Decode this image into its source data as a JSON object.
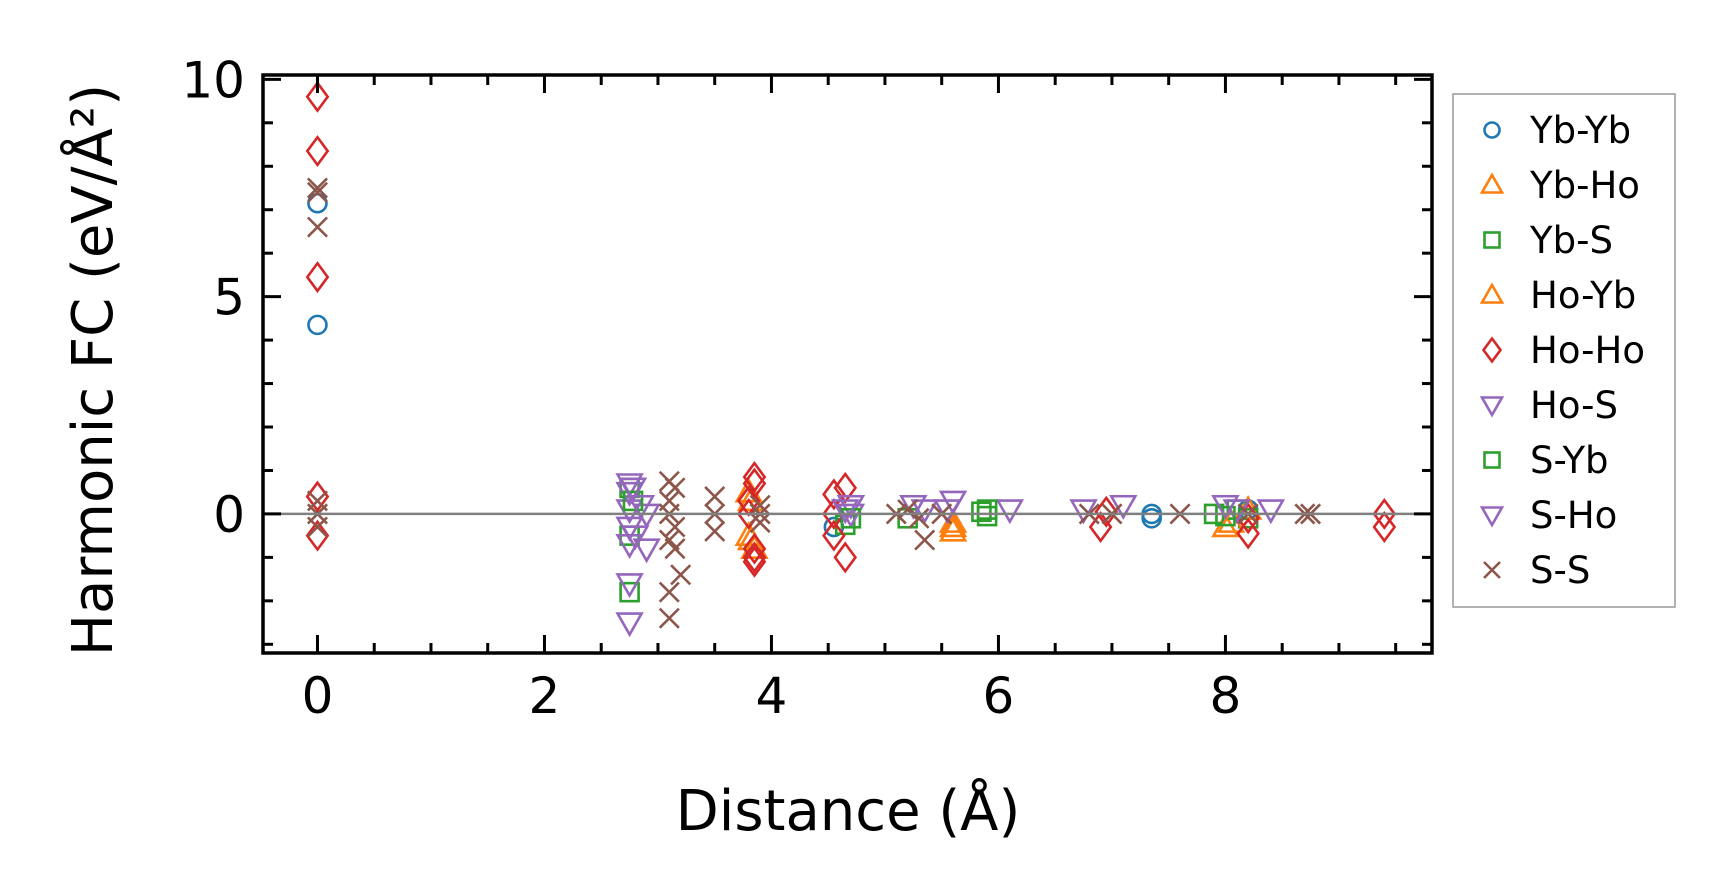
{
  "chart_data": {
    "type": "scatter",
    "title": "",
    "xlabel": "Distance (Å)",
    "ylabel": "Harmonic FC (eV/Å²)",
    "xlim": [
      -0.48,
      9.82
    ],
    "ylim": [
      -3.2,
      10.1
    ],
    "xticks": [
      "0",
      "2",
      "4",
      "6",
      "8"
    ],
    "xtick_values": [
      0,
      2,
      4,
      6,
      8
    ],
    "yticks": [
      "0",
      "5",
      "10"
    ],
    "ytick_values": [
      0,
      5,
      10
    ],
    "zero_line": true,
    "legend_position": "outside-right",
    "series": [
      {
        "name": "Yb-Yb",
        "marker": "circle",
        "color": "#1f77b4",
        "points": [
          [
            0,
            7.15
          ],
          [
            0,
            4.35
          ],
          [
            4.55,
            -0.3
          ],
          [
            7.35,
            0
          ],
          [
            7.35,
            -0.1
          ],
          [
            8.2,
            0.1
          ]
        ]
      },
      {
        "name": "Yb-Ho",
        "marker": "triangle-up",
        "color": "#ff7f0e",
        "points": [
          [
            3.8,
            0.5
          ],
          [
            3.8,
            -0.5
          ],
          [
            3.85,
            -0.8
          ],
          [
            5.6,
            -0.4
          ],
          [
            5.6,
            -0.2
          ],
          [
            8.0,
            -0.3
          ],
          [
            8.2,
            0.1
          ]
        ]
      },
      {
        "name": "Yb-S",
        "marker": "square",
        "color": "#2ca02c",
        "points": [
          [
            2.75,
            0.6
          ],
          [
            2.75,
            -0.5
          ],
          [
            2.75,
            -1.8
          ],
          [
            4.65,
            -0.25
          ],
          [
            5.2,
            -0.1
          ],
          [
            5.85,
            0.05
          ],
          [
            5.9,
            -0.05
          ],
          [
            7.9,
            0
          ],
          [
            8.1,
            0.1
          ],
          [
            8.2,
            -0.1
          ]
        ]
      },
      {
        "name": "Ho-Yb",
        "marker": "triangle-up",
        "color": "#ff7f0e",
        "points": [
          [
            3.82,
            0.3
          ],
          [
            3.82,
            -0.6
          ],
          [
            5.6,
            -0.3
          ],
          [
            8.05,
            -0.2
          ]
        ]
      },
      {
        "name": "Ho-Ho",
        "marker": "diamond",
        "color": "#d62728",
        "points": [
          [
            0,
            9.6
          ],
          [
            0,
            8.35
          ],
          [
            0,
            5.45
          ],
          [
            0,
            0.4
          ],
          [
            0,
            -0.5
          ],
          [
            3.85,
            0.85
          ],
          [
            3.85,
            0.7
          ],
          [
            3.85,
            -0.8
          ],
          [
            3.85,
            -1.0
          ],
          [
            3.85,
            -1.1
          ],
          [
            3.8,
            0.3
          ],
          [
            3.8,
            0
          ],
          [
            4.55,
            0.45
          ],
          [
            4.65,
            0.6
          ],
          [
            4.55,
            -0.5
          ],
          [
            4.65,
            -1.0
          ],
          [
            4.55,
            0
          ],
          [
            6.9,
            -0.3
          ],
          [
            6.95,
            0.05
          ],
          [
            8.2,
            -0.45
          ],
          [
            8.2,
            -0.1
          ],
          [
            9.4,
            0
          ],
          [
            9.4,
            -0.3
          ]
        ]
      },
      {
        "name": "Ho-S",
        "marker": "triangle-down",
        "color": "#9467bd",
        "points": [
          [
            2.75,
            0.7
          ],
          [
            2.75,
            0.5
          ],
          [
            2.75,
            0.1
          ],
          [
            2.75,
            -0.3
          ],
          [
            2.75,
            -0.7
          ],
          [
            2.75,
            -1.6
          ],
          [
            2.75,
            -2.5
          ],
          [
            2.9,
            0
          ],
          [
            2.9,
            -0.8
          ],
          [
            4.7,
            0
          ],
          [
            4.7,
            0.2
          ],
          [
            5.25,
            0.2
          ],
          [
            5.6,
            0.3
          ],
          [
            6.1,
            0.1
          ],
          [
            6.75,
            0.1
          ],
          [
            7.1,
            0.2
          ],
          [
            8.1,
            0.1
          ],
          [
            8.4,
            0.1
          ]
        ]
      },
      {
        "name": "S-Yb",
        "marker": "square",
        "color": "#2ca02c",
        "points": [
          [
            2.78,
            0.3
          ],
          [
            4.7,
            -0.1
          ],
          [
            5.9,
            0.1
          ],
          [
            8.0,
            -0.05
          ]
        ]
      },
      {
        "name": "S-Ho",
        "marker": "triangle-down",
        "color": "#9467bd",
        "points": [
          [
            2.78,
            0.6
          ],
          [
            2.8,
            -0.5
          ],
          [
            2.85,
            0.2
          ],
          [
            4.65,
            0.1
          ],
          [
            5.35,
            0.1
          ],
          [
            5.55,
            0.1
          ],
          [
            8.0,
            0.2
          ]
        ]
      },
      {
        "name": "S-S",
        "marker": "x",
        "color": "#8c564b",
        "points": [
          [
            0,
            7.5
          ],
          [
            0,
            7.4
          ],
          [
            0,
            6.6
          ],
          [
            0,
            0.3
          ],
          [
            0,
            0
          ],
          [
            0,
            -0.3
          ],
          [
            3.1,
            0.75
          ],
          [
            3.15,
            0.6
          ],
          [
            3.1,
            0.3
          ],
          [
            3.1,
            0
          ],
          [
            3.15,
            -0.3
          ],
          [
            3.1,
            -0.6
          ],
          [
            3.15,
            -0.8
          ],
          [
            3.2,
            -1.4
          ],
          [
            3.1,
            -1.8
          ],
          [
            3.1,
            -2.4
          ],
          [
            3.5,
            0.4
          ],
          [
            3.5,
            0
          ],
          [
            3.5,
            -0.4
          ],
          [
            3.9,
            0.2
          ],
          [
            3.9,
            0
          ],
          [
            3.9,
            -0.2
          ],
          [
            5.1,
            0
          ],
          [
            5.2,
            0.1
          ],
          [
            5.3,
            -0.1
          ],
          [
            5.35,
            -0.6
          ],
          [
            5.5,
            0
          ],
          [
            6.8,
            0
          ],
          [
            7.0,
            0
          ],
          [
            7.6,
            0
          ],
          [
            8.2,
            0
          ],
          [
            8.7,
            0
          ],
          [
            8.75,
            0
          ]
        ]
      }
    ]
  }
}
